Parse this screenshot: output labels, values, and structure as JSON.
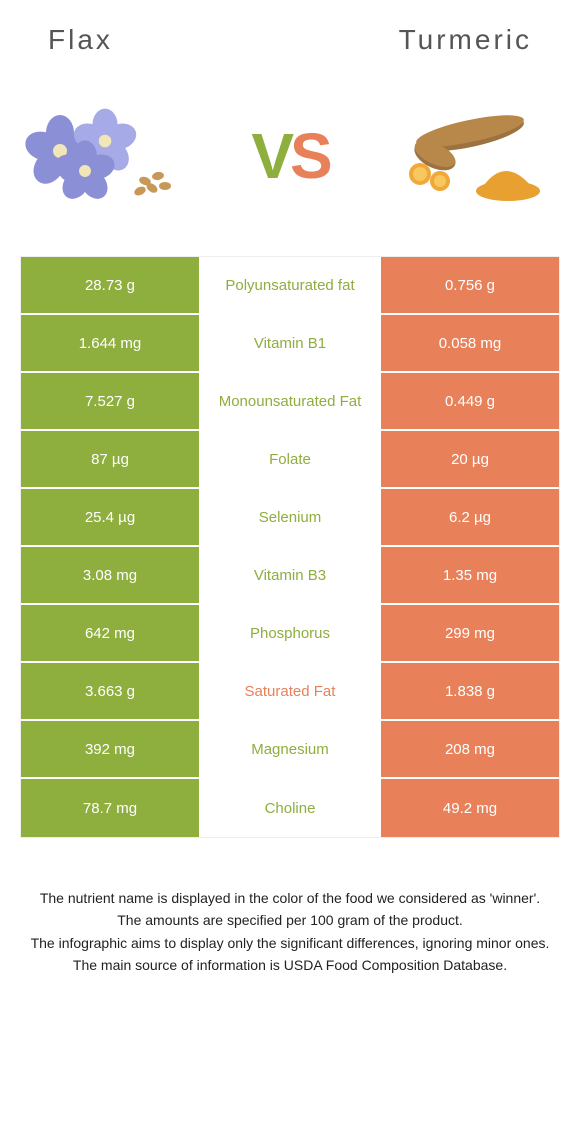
{
  "header": {
    "left": "Flax",
    "right": "Turmeric",
    "vs_v": "V",
    "vs_s": "S"
  },
  "colors": {
    "left": "#8eae3e",
    "right": "#e8805a",
    "text": "#555555"
  },
  "rows": [
    {
      "left": "28.73 g",
      "label": "Polyunsaturated fat",
      "right": "0.756 g",
      "labelColor": "#8eae3e"
    },
    {
      "left": "1.644 mg",
      "label": "Vitamin B1",
      "right": "0.058 mg",
      "labelColor": "#8eae3e"
    },
    {
      "left": "7.527 g",
      "label": "Monounsaturated Fat",
      "right": "0.449 g",
      "labelColor": "#8eae3e"
    },
    {
      "left": "87 µg",
      "label": "Folate",
      "right": "20 µg",
      "labelColor": "#8eae3e"
    },
    {
      "left": "25.4 µg",
      "label": "Selenium",
      "right": "6.2 µg",
      "labelColor": "#8eae3e"
    },
    {
      "left": "3.08 mg",
      "label": "Vitamin B3",
      "right": "1.35 mg",
      "labelColor": "#8eae3e"
    },
    {
      "left": "642 mg",
      "label": "Phosphorus",
      "right": "299 mg",
      "labelColor": "#8eae3e"
    },
    {
      "left": "3.663 g",
      "label": "Saturated Fat",
      "right": "1.838 g",
      "labelColor": "#e8805a"
    },
    {
      "left": "392 mg",
      "label": "Magnesium",
      "right": "208 mg",
      "labelColor": "#8eae3e"
    },
    {
      "left": "78.7 mg",
      "label": "Choline",
      "right": "49.2 mg",
      "labelColor": "#8eae3e"
    }
  ],
  "footer": {
    "line1": "The nutrient name is displayed in the color of the food we considered as 'winner'.",
    "line2": "The amounts are specified per 100 gram of the product.",
    "line3": "The infographic aims to display only the significant differences, ignoring minor ones.",
    "line4": "The main source of information is USDA Food Composition Database."
  }
}
